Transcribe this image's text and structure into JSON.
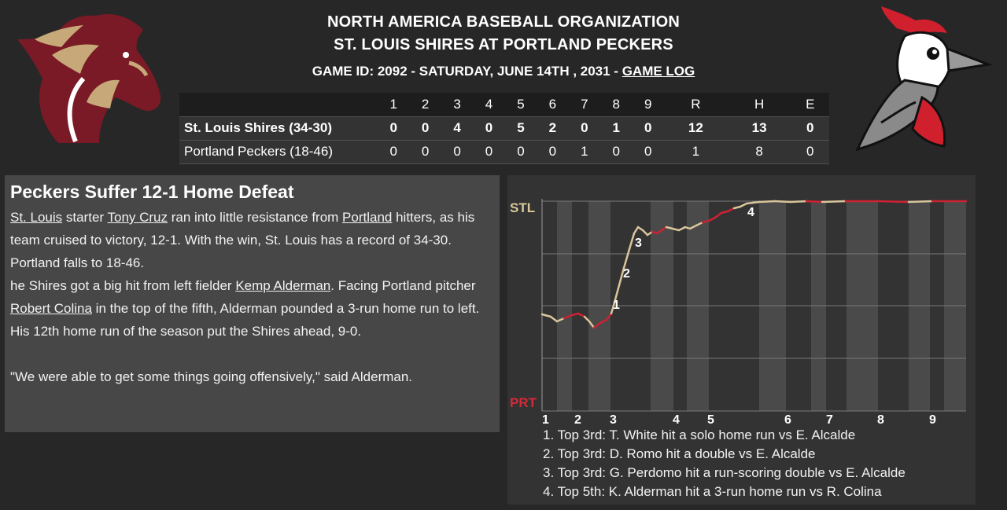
{
  "header": {
    "org": "NORTH AMERICA BASEBALL ORGANIZATION",
    "matchup": "ST. LOUIS SHIRES AT PORTLAND PECKERS",
    "game_info": "GAME ID: 2092 - SATURDAY, JUNE 14TH , 2031 - ",
    "game_log_link": "GAME LOG"
  },
  "logos": {
    "away": "horse-logo",
    "home": "woodpecker-logo"
  },
  "linescore": {
    "columns": [
      "1",
      "2",
      "3",
      "4",
      "5",
      "6",
      "7",
      "8",
      "9",
      "R",
      "H",
      "E"
    ],
    "teams": [
      {
        "name": "St. Louis Shires (34-30)",
        "innings": [
          "0",
          "0",
          "4",
          "0",
          "5",
          "2",
          "0",
          "1",
          "0"
        ],
        "r": "12",
        "h": "13",
        "e": "0"
      },
      {
        "name": "Portland Peckers (18-46)",
        "innings": [
          "0",
          "0",
          "0",
          "0",
          "0",
          "0",
          "1",
          "0",
          "0"
        ],
        "r": "1",
        "h": "8",
        "e": "0"
      }
    ]
  },
  "story": {
    "headline": "Peckers Suffer 12-1 Home Defeat",
    "p1": {
      "link_away": "St. Louis",
      "t1": " starter ",
      "link_pitcher": "Tony Cruz",
      "t2": " ran into little resistance from ",
      "link_home": "Portland",
      "t3": " hitters, as his team cruised to victory, 12-1. With the win, St. Louis has a record of 34-30. Portland falls to 18-46."
    },
    "p2": {
      "t1": "he Shires got a big hit from left fielder ",
      "link_hitter": "Kemp Alderman",
      "t2": ". Facing Portland pitcher ",
      "link_opp_pitcher": "Robert Colina",
      "t3": " in the top of the fifth, Alderman pounded a 3-run home run to left. His 12th home run of the season put the Shires ahead, 9-0."
    },
    "quote": "\"We were able to get some things going offensively,\" said Alderman."
  },
  "win_prob": {
    "top_label": "STL",
    "bottom_label": "PRT",
    "inning_labels": [
      "1",
      "2",
      "3",
      "4",
      "5",
      "6",
      "7",
      "8",
      "9"
    ],
    "marker_labels": [
      "1",
      "2",
      "3",
      "4"
    ],
    "colors": {
      "away": "#d9c59a",
      "home": "#cc2233",
      "top_label": "#d8c89a",
      "bottom_label": "#d22a38"
    }
  },
  "plays": [
    "1. Top 3rd: T. White hit a solo home run vs E. Alcalde",
    "2. Top 3rd: D. Romo hit a double vs E. Alcalde",
    "3. Top 3rd: G. Perdomo hit a run-scoring double vs E. Alcalde",
    "4. Top 5th: K. Alderman hit a 3-run home run vs R. Colina"
  ]
}
